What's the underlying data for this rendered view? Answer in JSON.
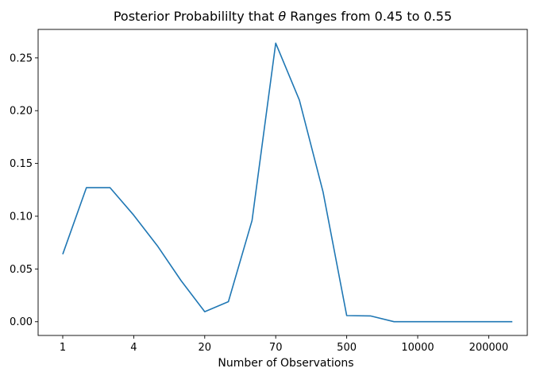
{
  "chart_data": {
    "type": "line",
    "title_prefix": "Posterior Probabililty that ",
    "title_symbol": "θ",
    "title_suffix": " Ranges from 0.45 to 0.55",
    "xlabel": "Number of Observations",
    "ylabel": "",
    "x_tick_labels": [
      "1",
      "4",
      "20",
      "70",
      "500",
      "10000",
      "200000"
    ],
    "y_tick_labels": [
      "0.00",
      "0.05",
      "0.10",
      "0.15",
      "0.20",
      "0.25"
    ],
    "y_ticks": [
      0.0,
      0.05,
      0.1,
      0.15,
      0.2,
      0.25
    ],
    "ylim": [
      -0.013,
      0.277
    ],
    "grid": false,
    "legend": "none",
    "series": [
      {
        "color": "#1f77b4",
        "values": [
          0.064,
          0.127,
          0.127,
          0.101,
          0.072,
          0.039,
          0.0095,
          0.019,
          0.096,
          0.264,
          0.21,
          0.123,
          0.0058,
          0.0055,
          0.0,
          0.0,
          0.0,
          0.0,
          0.0,
          0.0
        ]
      }
    ]
  }
}
